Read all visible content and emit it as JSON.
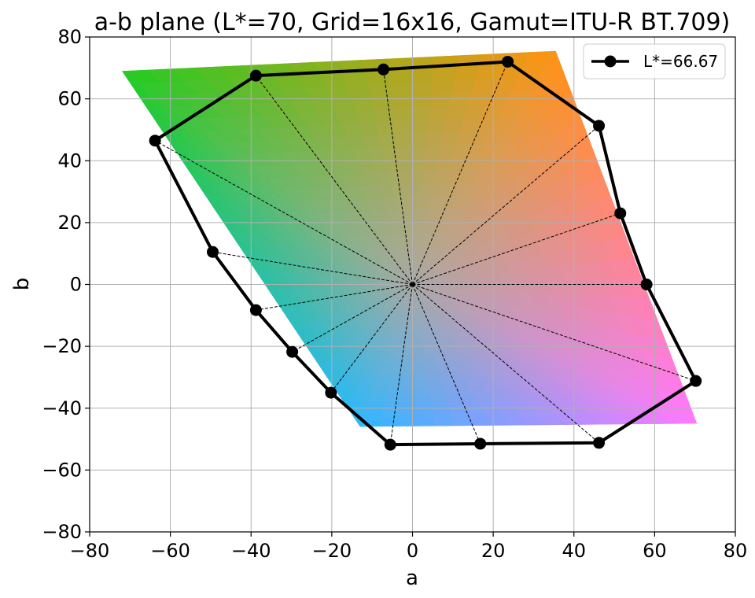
{
  "chart_data": {
    "type": "line",
    "title": "a-b plane (L*=70, Grid=16x16, Gamut=ITU-R BT.709)",
    "xlabel": "a",
    "ylabel": "b",
    "xlim": [
      -80,
      80
    ],
    "ylim": [
      -80,
      80
    ],
    "xticks": [
      -80,
      -60,
      -40,
      -20,
      0,
      20,
      40,
      60,
      80
    ],
    "yticks": [
      -80,
      -60,
      -40,
      -20,
      0,
      20,
      40,
      60,
      80
    ],
    "xtick_labels": [
      "−80",
      "−60",
      "−40",
      "−20",
      "0",
      "20",
      "40",
      "60",
      "80"
    ],
    "ytick_labels": [
      "−80",
      "−60",
      "−40",
      "−20",
      "0",
      "20",
      "40",
      "60",
      "80"
    ],
    "grid": true,
    "legend_position": "top-right",
    "series": [
      {
        "name": "L*=66.67",
        "color": "#000000",
        "marker": "circle",
        "points": [
          [
            58.0,
            0.0
          ],
          [
            51.5,
            23.0
          ],
          [
            46.2,
            51.3
          ],
          [
            23.6,
            72.0
          ],
          [
            -7.2,
            69.5
          ],
          [
            -38.8,
            67.5
          ],
          [
            -63.8,
            46.5
          ],
          [
            -49.5,
            10.5
          ],
          [
            -38.8,
            -8.3
          ],
          [
            -29.8,
            -21.8
          ],
          [
            -20.2,
            -35.0
          ],
          [
            -5.5,
            -51.8
          ],
          [
            16.8,
            -51.5
          ],
          [
            46.2,
            -51.2
          ],
          [
            70.2,
            -31.2
          ]
        ]
      }
    ],
    "spokes": {
      "style": "dashed",
      "color": "#000000",
      "origin": [
        0,
        0
      ]
    },
    "gamut_region": {
      "corners": [
        [
          -72,
          69
        ],
        [
          35.5,
          75.5
        ],
        [
          70.5,
          -45
        ],
        [
          -13,
          -46
        ]
      ],
      "corner_colors": [
        "#22cc22",
        "#ff9311",
        "#ff78ff",
        "#2fb8ff"
      ],
      "center_color": "#a9a9a6"
    }
  }
}
